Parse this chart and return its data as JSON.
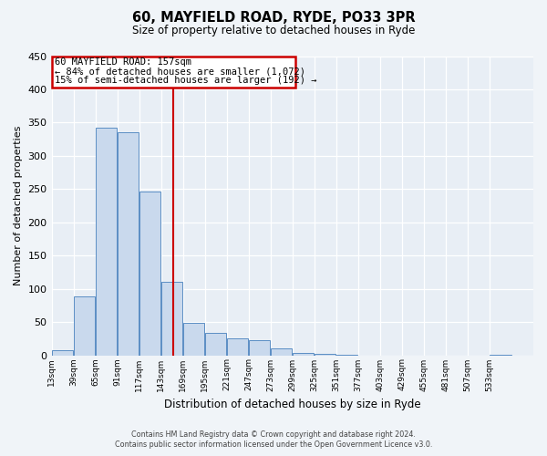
{
  "title": "60, MAYFIELD ROAD, RYDE, PO33 3PR",
  "subtitle": "Size of property relative to detached houses in Ryde",
  "xlabel": "Distribution of detached houses by size in Ryde",
  "ylabel": "Number of detached properties",
  "bin_labels": [
    "13sqm",
    "39sqm",
    "65sqm",
    "91sqm",
    "117sqm",
    "143sqm",
    "169sqm",
    "195sqm",
    "221sqm",
    "247sqm",
    "273sqm",
    "299sqm",
    "325sqm",
    "351sqm",
    "377sqm",
    "403sqm",
    "429sqm",
    "455sqm",
    "481sqm",
    "507sqm",
    "533sqm"
  ],
  "bin_lefts": [
    13,
    39,
    65,
    91,
    117,
    143,
    169,
    195,
    221,
    247,
    273,
    299,
    325,
    351,
    377,
    403,
    429,
    455,
    481,
    507,
    533
  ],
  "bin_width": 26,
  "bar_heights": [
    7,
    88,
    342,
    335,
    246,
    110,
    49,
    33,
    25,
    22,
    10,
    4,
    2,
    1,
    0,
    0,
    0,
    0,
    0,
    0,
    1
  ],
  "bar_color": "#c9d9ed",
  "bar_edge_color": "#5b8ec4",
  "vline_x": 157,
  "vline_color": "#cc0000",
  "annotation_title": "60 MAYFIELD ROAD: 157sqm",
  "annotation_line1": "← 84% of detached houses are smaller (1,072)",
  "annotation_line2": "15% of semi-detached houses are larger (192) →",
  "annotation_box_edgecolor": "#cc0000",
  "xlim_left": 13,
  "xlim_right": 585,
  "ylim": [
    0,
    450
  ],
  "yticks": [
    0,
    50,
    100,
    150,
    200,
    250,
    300,
    350,
    400,
    450
  ],
  "plot_bg_color": "#f0f4f8",
  "ax_bg_color": "#e8eef5",
  "footer1": "Contains HM Land Registry data © Crown copyright and database right 2024.",
  "footer2": "Contains public sector information licensed under the Open Government Licence v3.0."
}
